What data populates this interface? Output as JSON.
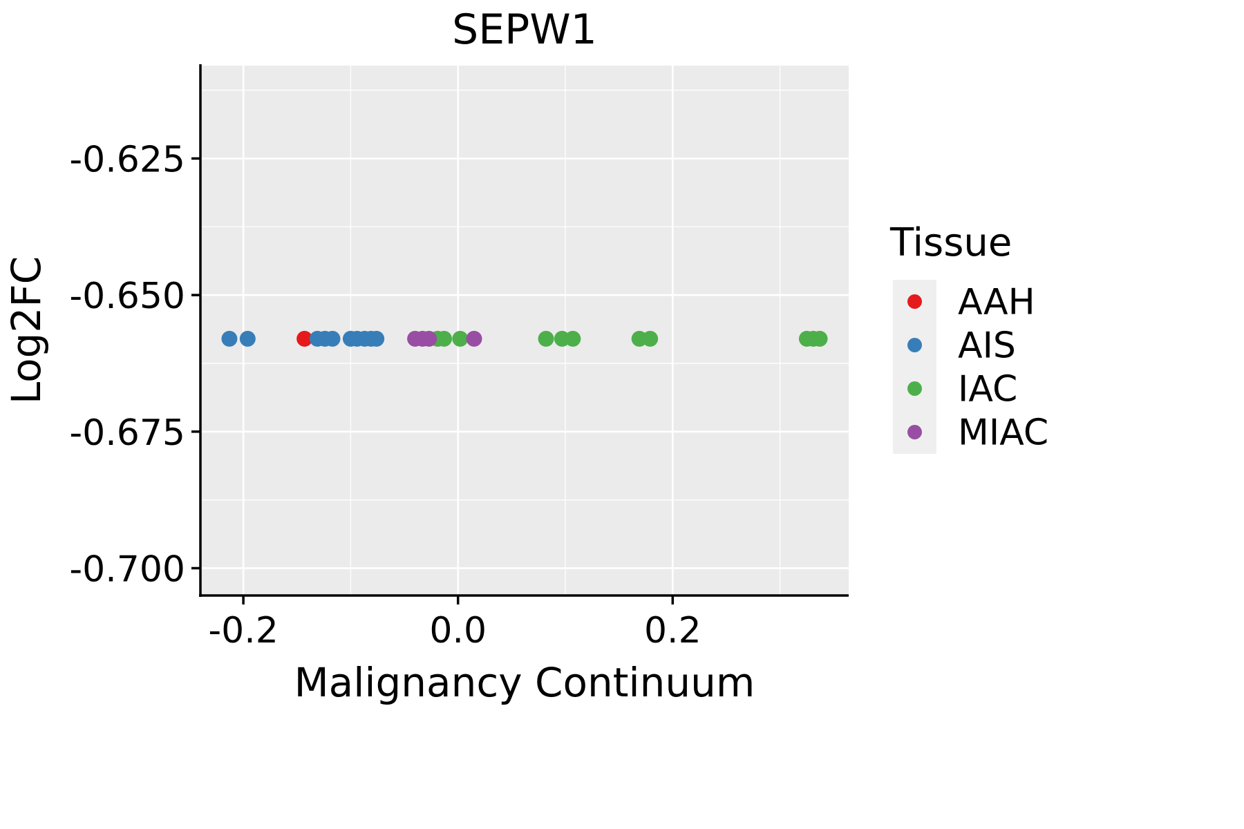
{
  "chart_data": {
    "type": "scatter",
    "title": "SEPW1",
    "xlabel": "Malignancy Continuum",
    "ylabel": "Log2FC",
    "xlim": [
      -0.24,
      0.364
    ],
    "ylim": [
      -0.705,
      -0.608
    ],
    "x_major_ticks": [
      -0.2,
      0.0,
      0.2
    ],
    "x_tick_labels": [
      "-0.2",
      "0.0",
      "0.2"
    ],
    "x_minor_gridlines": [
      -0.1,
      0.1,
      0.3
    ],
    "y_major_ticks": [
      -0.625,
      -0.65,
      -0.675,
      -0.7
    ],
    "y_tick_labels": [
      "-0.625",
      "-0.650",
      "-0.675",
      "-0.700"
    ],
    "y_minor_gridlines": [
      -0.6125,
      -0.6375,
      -0.6625,
      -0.6875
    ],
    "grid": true,
    "panel_bg": "#EBEBEB",
    "grid_color": "#FFFFFF",
    "axis_color": "#000000",
    "legend": {
      "title": "Tissue",
      "position": "right",
      "key_bg": "#EFEFEF"
    },
    "series": [
      {
        "name": "AAH",
        "color": "#E41A1C",
        "points": [
          [
            -0.143,
            -0.658
          ]
        ]
      },
      {
        "name": "AIS",
        "color": "#377EB8",
        "points": [
          [
            -0.213,
            -0.658
          ],
          [
            -0.196,
            -0.658
          ],
          [
            -0.131,
            -0.658
          ],
          [
            -0.124,
            -0.658
          ],
          [
            -0.117,
            -0.658
          ],
          [
            -0.1,
            -0.658
          ],
          [
            -0.094,
            -0.658
          ],
          [
            -0.087,
            -0.658
          ],
          [
            -0.081,
            -0.658
          ],
          [
            -0.076,
            -0.658
          ]
        ]
      },
      {
        "name": "IAC",
        "color": "#4DAF4A",
        "points": [
          [
            -0.019,
            -0.658
          ],
          [
            -0.013,
            -0.658
          ],
          [
            0.002,
            -0.658
          ],
          [
            0.082,
            -0.658
          ],
          [
            0.097,
            -0.658
          ],
          [
            0.107,
            -0.658
          ],
          [
            0.169,
            -0.658
          ],
          [
            0.179,
            -0.658
          ],
          [
            0.325,
            -0.658
          ],
          [
            0.331,
            -0.658
          ],
          [
            0.337,
            -0.658
          ]
        ]
      },
      {
        "name": "MIAC",
        "color": "#984EA3",
        "points": [
          [
            -0.04,
            -0.658
          ],
          [
            -0.033,
            -0.658
          ],
          [
            -0.027,
            -0.658
          ],
          [
            0.015,
            -0.658
          ]
        ]
      }
    ]
  }
}
